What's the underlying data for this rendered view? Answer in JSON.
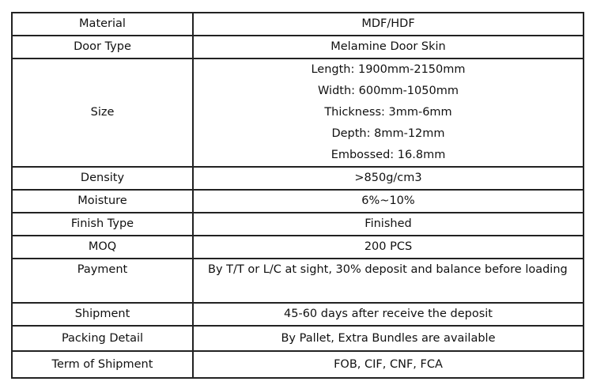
{
  "rows": [
    {
      "label": "Material",
      "value": "MDF/HDF"
    },
    {
      "label": "Door Type",
      "value": "Melamine Door Skin"
    },
    {
      "label": "Size",
      "lines": [
        "Length: 1900mm-2150mm",
        "Width: 600mm-1050mm",
        "Thickness: 3mm-6mm",
        "Depth: 8mm-12mm",
        "Embossed: 16.8mm"
      ]
    },
    {
      "label": "Density",
      "value": ">850g/cm3"
    },
    {
      "label": "Moisture",
      "value": "6%~10%"
    },
    {
      "label": "Finish Type",
      "value": "Finished"
    },
    {
      "label": "MOQ",
      "value": "200 PCS"
    },
    {
      "label": "Payment",
      "value": "By T/T or L/C at sight, 30% deposit and balance before loading"
    },
    {
      "label": "Shipment",
      "value": "45-60 days after receive the deposit"
    },
    {
      "label": "Packing Detail",
      "value": "By Pallet, Extra Bundles are available"
    },
    {
      "label": "Term of Shipment",
      "value": "FOB, CIF, CNF, FCA"
    }
  ]
}
